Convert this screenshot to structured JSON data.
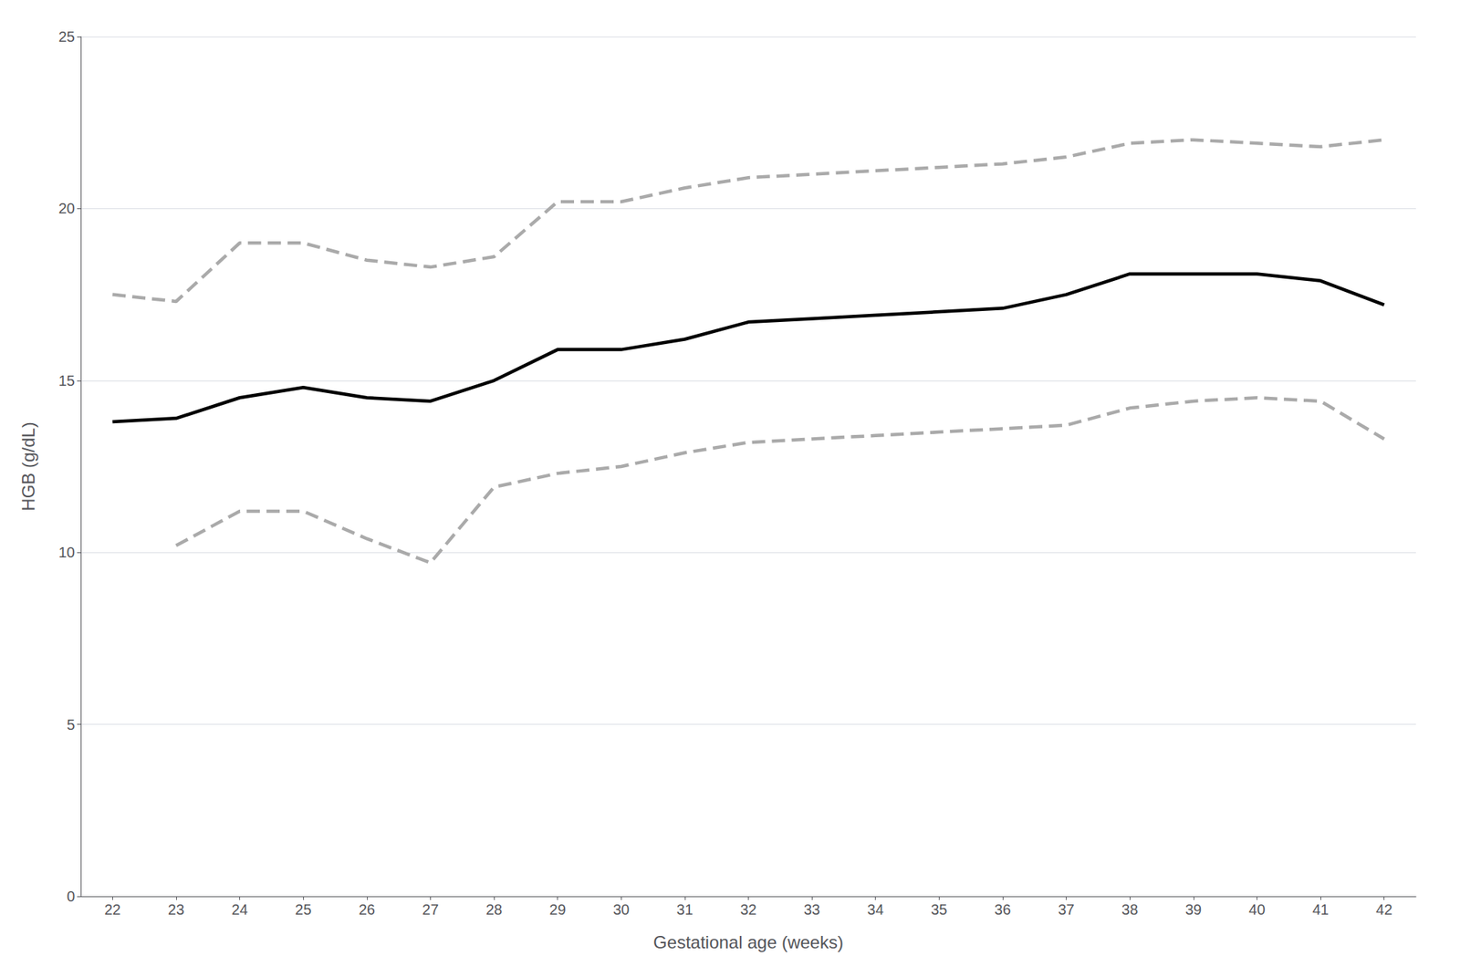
{
  "chart_data": {
    "type": "line",
    "x": [
      22,
      23,
      24,
      25,
      26,
      27,
      28,
      29,
      30,
      31,
      32,
      33,
      34,
      35,
      36,
      37,
      38,
      39,
      40,
      41,
      42
    ],
    "series": [
      {
        "color": "#aaaaaa",
        "line_style": "dashed",
        "values": [
          17.5,
          17.3,
          19.0,
          19.0,
          18.5,
          18.3,
          18.6,
          20.2,
          20.2,
          20.6,
          20.9,
          21.0,
          21.1,
          21.2,
          21.3,
          21.5,
          21.9,
          22.0,
          21.9,
          21.8,
          22.0
        ]
      },
      {
        "color": "#aaaaaa",
        "line_style": "dashed",
        "values": [
          null,
          10.2,
          11.2,
          11.2,
          10.4,
          9.7,
          11.9,
          12.3,
          12.5,
          12.9,
          13.2,
          13.3,
          13.4,
          13.5,
          13.6,
          13.7,
          14.2,
          14.4,
          14.5,
          14.4,
          13.3
        ]
      },
      {
        "color": "#000000",
        "line_style": "solid",
        "values": [
          13.8,
          13.9,
          14.5,
          14.8,
          14.5,
          14.4,
          15.0,
          15.9,
          15.9,
          16.2,
          16.7,
          16.8,
          16.9,
          17.0,
          17.1,
          17.5,
          18.1,
          18.1,
          18.1,
          17.9,
          17.2
        ]
      }
    ],
    "xlabel": "Gestational age (weeks)",
    "ylabel": "HGB (g/dL)",
    "xlim": [
      21.5,
      42.5
    ],
    "xticks": [
      22,
      23,
      24,
      25,
      26,
      27,
      28,
      29,
      30,
      31,
      32,
      33,
      34,
      35,
      36,
      37,
      38,
      39,
      40,
      41,
      42
    ],
    "ylim": [
      0,
      25
    ],
    "yticks": [
      0,
      5,
      10,
      15,
      20,
      25
    ],
    "grid": true
  }
}
